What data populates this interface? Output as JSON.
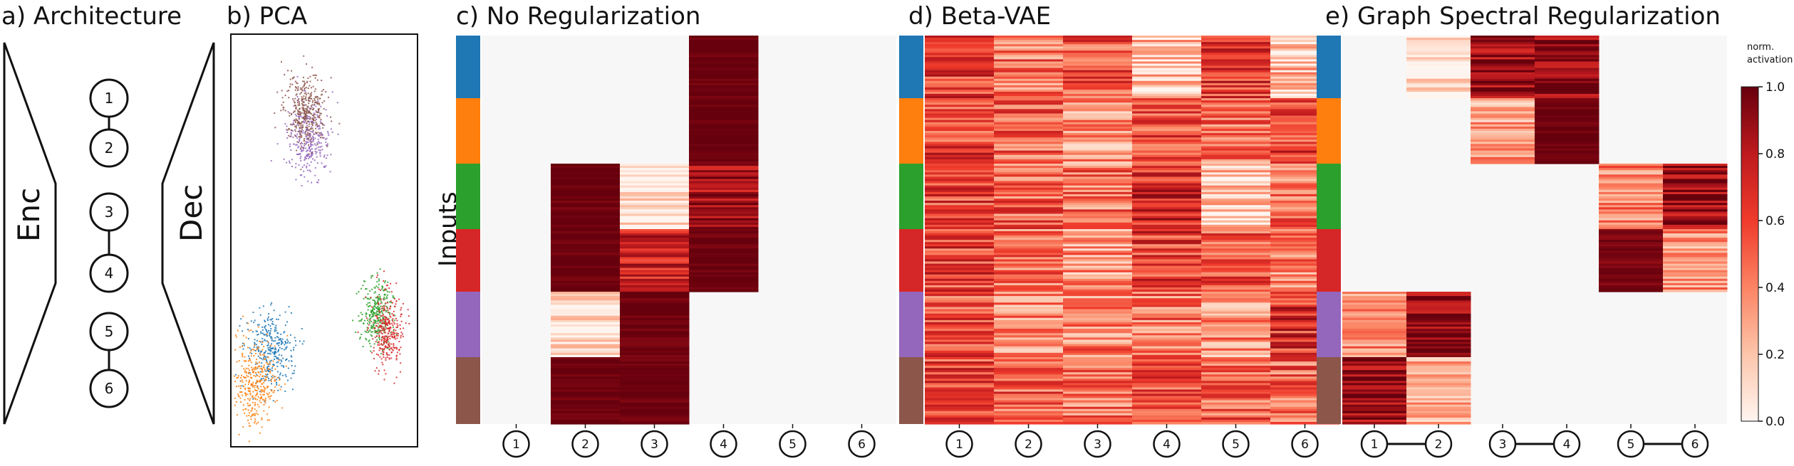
{
  "panels": {
    "a_title": "a) Architecture",
    "b_title": "b) PCA",
    "c_title": "c) No Regularization",
    "d_title": "d) Beta-VAE",
    "e_title": "e) Graph Spectral Regularization"
  },
  "architecture": {
    "encoder_label": "Enc",
    "decoder_label": "Dec",
    "nodes": [
      "1",
      "2",
      "3",
      "4",
      "5",
      "6"
    ]
  },
  "y_label": "Inputs",
  "colorbar": {
    "title_line1": "norm.",
    "title_line2": "activation",
    "ticks": [
      "1.0",
      "0.8",
      "0.6",
      "0.4",
      "0.2",
      "0.0"
    ]
  },
  "colors": {
    "groups": [
      "#1f77b4",
      "#ff7f0e",
      "#2ca02c",
      "#d62728",
      "#9467bd",
      "#8c564b"
    ],
    "dark": "#67000d",
    "background": "#f7f7f7"
  },
  "chart_data": [
    {
      "type": "scatter",
      "title": "b) PCA",
      "series": [],
      "clusters_note_colors": [
        "#8c564b",
        "#9467bd",
        "#2ca02c",
        "#d62728",
        "#1f77b4",
        "#ff7f0e"
      ]
    },
    {
      "type": "heatmap",
      "title": "c) No Regularization",
      "ylabel": "Inputs",
      "columns": [
        "1",
        "2",
        "3",
        "4",
        "5",
        "6"
      ],
      "rows": [
        "blue",
        "orange",
        "green",
        "red",
        "purple",
        "brown"
      ],
      "values": [
        [
          0.0,
          0.0,
          0.0,
          1.0,
          0.0,
          0.0
        ],
        [
          0.0,
          0.0,
          0.0,
          1.0,
          0.0,
          0.0
        ],
        [
          0.0,
          1.0,
          0.05,
          0.85,
          0.0,
          0.0
        ],
        [
          0.0,
          1.0,
          0.75,
          1.0,
          0.0,
          0.0
        ],
        [
          0.0,
          0.05,
          1.0,
          0.0,
          0.0,
          0.0
        ],
        [
          0.0,
          1.0,
          1.0,
          0.0,
          0.0,
          0.0
        ]
      ]
    },
    {
      "type": "heatmap",
      "title": "d) Beta-VAE",
      "columns": [
        "1",
        "2",
        "3",
        "4",
        "5",
        "6"
      ],
      "rows": [
        "blue",
        "orange",
        "green",
        "red",
        "purple",
        "brown"
      ],
      "values": [
        [
          0.6,
          0.45,
          0.55,
          0.2,
          0.65,
          0.2
        ],
        [
          0.6,
          0.5,
          0.3,
          0.55,
          0.45,
          0.6
        ],
        [
          0.6,
          0.5,
          0.45,
          0.7,
          0.15,
          0.45
        ],
        [
          0.6,
          0.45,
          0.35,
          0.6,
          0.55,
          0.4
        ],
        [
          0.55,
          0.4,
          0.4,
          0.45,
          0.35,
          0.65
        ],
        [
          0.6,
          0.5,
          0.45,
          0.55,
          0.5,
          0.5
        ]
      ]
    },
    {
      "type": "heatmap",
      "title": "e) Graph Spectral Regularization",
      "columns": [
        "1",
        "2",
        "3",
        "4",
        "5",
        "6"
      ],
      "graph_edges": [
        [
          "1",
          "2"
        ],
        [
          "3",
          "4"
        ],
        [
          "5",
          "6"
        ]
      ],
      "rows": [
        "blue",
        "orange",
        "green",
        "red",
        "purple",
        "brown"
      ],
      "values": [
        [
          0.0,
          0.05,
          0.9,
          0.85,
          0.0,
          0.0
        ],
        [
          0.0,
          0.0,
          0.3,
          1.0,
          0.0,
          0.0
        ],
        [
          0.0,
          0.0,
          0.0,
          0.0,
          0.4,
          0.9
        ],
        [
          0.0,
          0.0,
          0.0,
          0.0,
          0.95,
          0.35
        ],
        [
          0.35,
          0.9,
          0.0,
          0.0,
          0.0,
          0.0
        ],
        [
          0.9,
          0.25,
          0.0,
          0.0,
          0.0,
          0.0
        ]
      ],
      "colorbar_range": [
        0.0,
        1.0
      ]
    }
  ]
}
